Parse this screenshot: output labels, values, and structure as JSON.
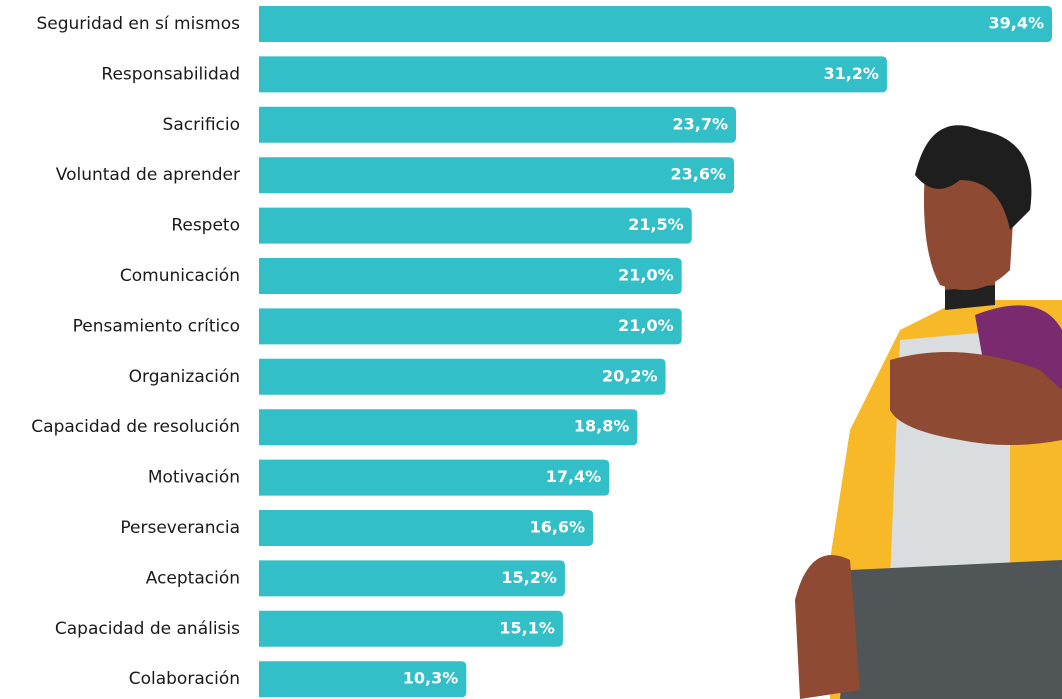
{
  "chart_data": {
    "type": "barh",
    "categories": [
      "Seguridad en sí mismos",
      "Responsabilidad",
      "Sacrificio",
      "Voluntad de aprender",
      "Respeto",
      "Comunicación",
      "Pensamiento crítico",
      "Organización",
      "Capacidad de resolución",
      "Motivación",
      "Perseverancia",
      "Aceptación",
      "Capacidad de análisis",
      "Colaboración"
    ],
    "values": [
      39.4,
      31.2,
      23.7,
      23.6,
      21.5,
      21.0,
      21.0,
      20.2,
      18.8,
      17.4,
      16.6,
      15.2,
      15.1,
      10.3
    ],
    "value_labels": [
      "39,4%",
      "31,2%",
      "23,7%",
      "23,6%",
      "21,5%",
      "21,0%",
      "21,0%",
      "20,2%",
      "18,8%",
      "17,4%",
      "16,6%",
      "15,2%",
      "15,1%",
      "10,3%"
    ],
    "color": "#33bfc8"
  }
}
